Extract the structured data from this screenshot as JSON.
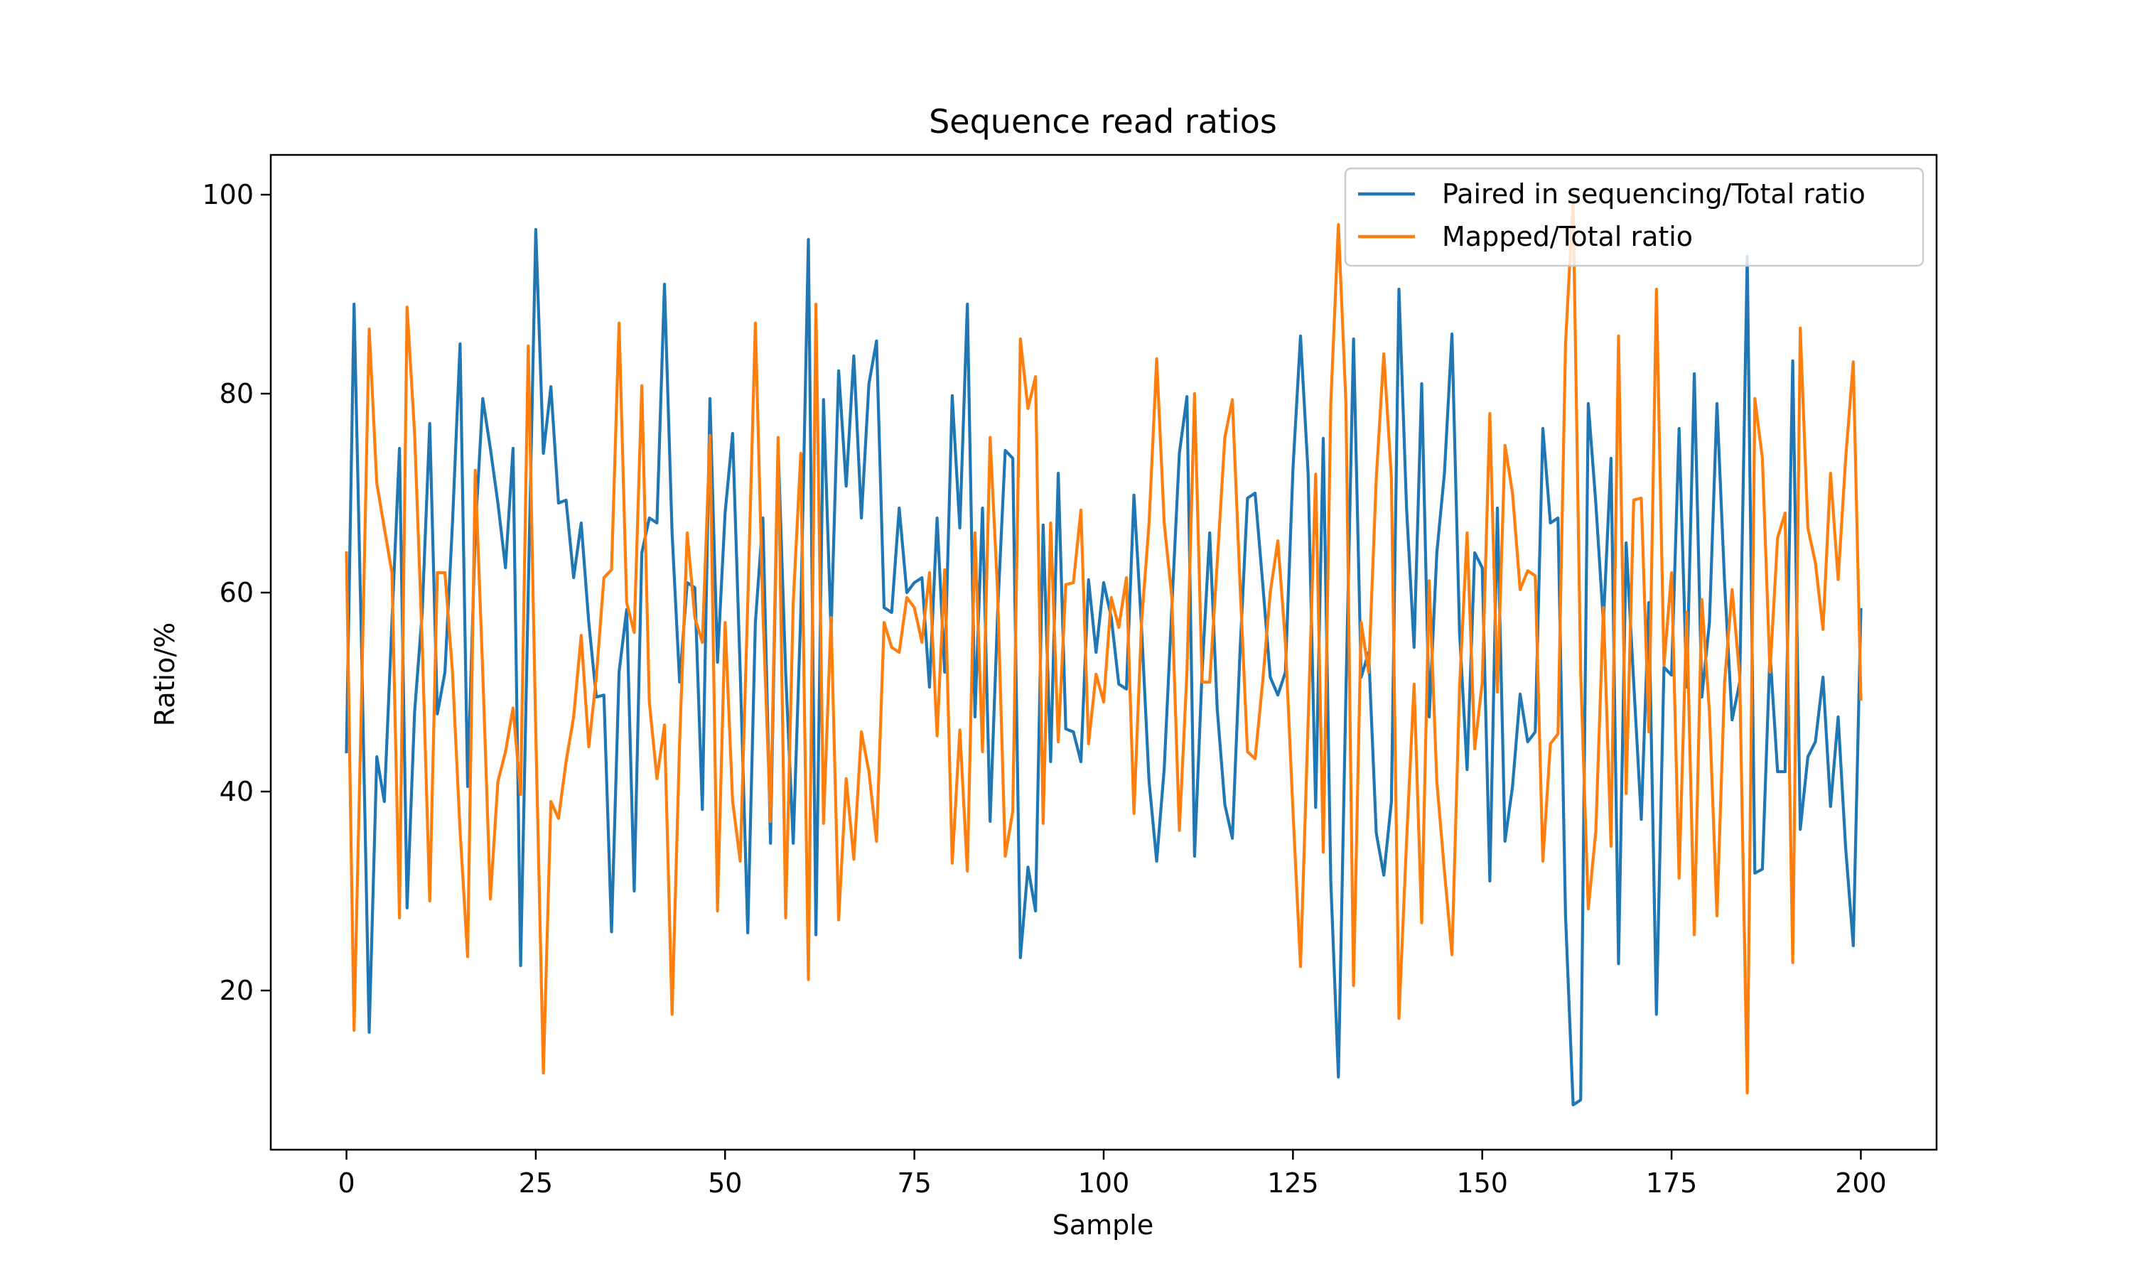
{
  "chart_data": {
    "type": "line",
    "title": "Sequence read ratios",
    "xlabel": "Sample",
    "ylabel": "Ratio/%",
    "xlim": [
      -10,
      210
    ],
    "ylim": [
      4,
      104
    ],
    "xticks": [
      0,
      25,
      50,
      75,
      100,
      125,
      150,
      175,
      200
    ],
    "yticks": [
      20,
      40,
      60,
      80,
      100
    ],
    "grid": false,
    "legend": "top-right",
    "series": [
      {
        "name": "Paired in sequencing/Total ratio",
        "color": "#1f77b4",
        "values": [
          44.0,
          89.0,
          54.0,
          15.8,
          43.5,
          39.0,
          57.0,
          74.5,
          28.3,
          48.0,
          58.0,
          77.0,
          47.8,
          52.0,
          67.0,
          85.0,
          40.5,
          66.0,
          79.5,
          74.5,
          69.0,
          62.5,
          74.5,
          22.5,
          60.0,
          96.5,
          74.0,
          80.7,
          69.0,
          69.3,
          61.5,
          67.0,
          57.0,
          49.5,
          49.7,
          25.9,
          52.0,
          58.3,
          30.0,
          64.0,
          67.5,
          67.0,
          91.0,
          66.0,
          51.0,
          61.0,
          60.5,
          38.2,
          79.5,
          53.0,
          68.0,
          76.0,
          52.0,
          25.8,
          57.0,
          67.5,
          34.8,
          74.8,
          52.0,
          34.8,
          58.0,
          95.5,
          25.6,
          79.4,
          56.0,
          82.3,
          70.7,
          83.8,
          67.5,
          81.0,
          85.3,
          58.5,
          58.0,
          68.5,
          60.0,
          61.0,
          61.5,
          50.5,
          67.5,
          52.0,
          79.8,
          66.5,
          89.0,
          47.5,
          68.5,
          37.0,
          58.0,
          74.3,
          73.5,
          23.3,
          32.4,
          28.0,
          66.8,
          43.0,
          72.0,
          46.3,
          46.0,
          43.0,
          61.3,
          54.0,
          61.0,
          57.5,
          50.8,
          50.3,
          69.8,
          56.5,
          41.0,
          33.0,
          42.3,
          58.5,
          74.0,
          79.7,
          33.5,
          52.0,
          66.0,
          48.3,
          38.7,
          35.3,
          54.0,
          69.5,
          70.0,
          61.0,
          51.5,
          49.7,
          52.0,
          72.5,
          85.8,
          72.0,
          38.4,
          75.5,
          31.0,
          11.3,
          50.0,
          85.5,
          51.5,
          54.0,
          35.8,
          31.6,
          39.0,
          90.5,
          68.5,
          54.5,
          81.0,
          47.5,
          64.0,
          72.0,
          86.0,
          56.0,
          42.2,
          64.0,
          62.5,
          31.0,
          68.5,
          35.0,
          40.5,
          49.8,
          45.0,
          46.0,
          76.5,
          67.0,
          67.5,
          27.5,
          8.5,
          9.0,
          79.0,
          69.0,
          57.0,
          73.5,
          22.7,
          65.0,
          51.0,
          37.2,
          59.0,
          17.6,
          52.5,
          51.7,
          76.5,
          50.5,
          82.0,
          49.5,
          57.0,
          79.0,
          61.0,
          47.2,
          51.0,
          93.8,
          31.8,
          32.2,
          54.0,
          42.0,
          42.0,
          83.3,
          36.2,
          43.5,
          45.0,
          51.5,
          38.5,
          47.5,
          34.3,
          24.5,
          58.3
        ]
      },
      {
        "name": "Mapped/Total ratio",
        "color": "#ff7f0e",
        "values": [
          64.0,
          16.0,
          50.0,
          86.5,
          71.0,
          66.5,
          62.0,
          27.3,
          88.7,
          76.0,
          55.0,
          29.0,
          62.0,
          62.0,
          52.0,
          36.0,
          23.4,
          72.3,
          52.0,
          29.2,
          41.0,
          44.0,
          48.4,
          39.7,
          84.8,
          46.0,
          11.7,
          39.0,
          37.3,
          43.0,
          47.5,
          55.7,
          44.5,
          51.5,
          61.5,
          62.3,
          87.1,
          59.0,
          56.0,
          80.8,
          49.0,
          41.3,
          46.7,
          17.6,
          45.0,
          66.0,
          57.5,
          55.0,
          75.8,
          28.0,
          57.0,
          39.0,
          33.0,
          59.0,
          87.1,
          58.0,
          37.0,
          75.6,
          27.3,
          59.0,
          74.0,
          21.1,
          89.0,
          36.8,
          57.5,
          27.1,
          41.3,
          33.2,
          46.0,
          42.0,
          35.0,
          57.0,
          54.5,
          54.0,
          59.5,
          58.5,
          55.0,
          62.0,
          45.6,
          62.3,
          32.8,
          46.2,
          32.0,
          66.0,
          44.0,
          75.6,
          60.0,
          33.5,
          38.0,
          85.5,
          78.5,
          81.7,
          36.8,
          67.0,
          45.0,
          60.8,
          61.0,
          68.3,
          44.8,
          51.8,
          49.0,
          59.5,
          56.5,
          61.5,
          37.8,
          57.0,
          67.0,
          83.5,
          67.0,
          59.5,
          36.1,
          52.0,
          80.0,
          51.0,
          51.0,
          63.0,
          75.6,
          79.4,
          61.0,
          44.0,
          43.3,
          51.0,
          60.0,
          65.2,
          55.0,
          38.0,
          22.4,
          47.0,
          71.9,
          33.9,
          79.0,
          97.0,
          79.0,
          20.5,
          57.0,
          52.0,
          71.5,
          84.0,
          71.5,
          17.2,
          35.0,
          50.8,
          26.8,
          61.2,
          41.0,
          32.0,
          23.6,
          50.5,
          66.0,
          44.3,
          51.0,
          78.0,
          50.0,
          74.8,
          70.0,
          60.3,
          62.2,
          61.7,
          33.0,
          44.8,
          45.8,
          85.0,
          99.5,
          52.0,
          28.2,
          36.0,
          58.5,
          34.5,
          85.8,
          39.8,
          69.3,
          69.5,
          46.0,
          90.5,
          52.7,
          62.0,
          31.3,
          58.0,
          25.6,
          59.3,
          48.0,
          27.5,
          51.0,
          60.3,
          51.5,
          9.7,
          79.5,
          73.5,
          52.0,
          65.5,
          68.0,
          22.8,
          86.6,
          66.5,
          63.0,
          56.3,
          72.0,
          61.3,
          73.5,
          83.2,
          49.3
        ]
      }
    ]
  }
}
